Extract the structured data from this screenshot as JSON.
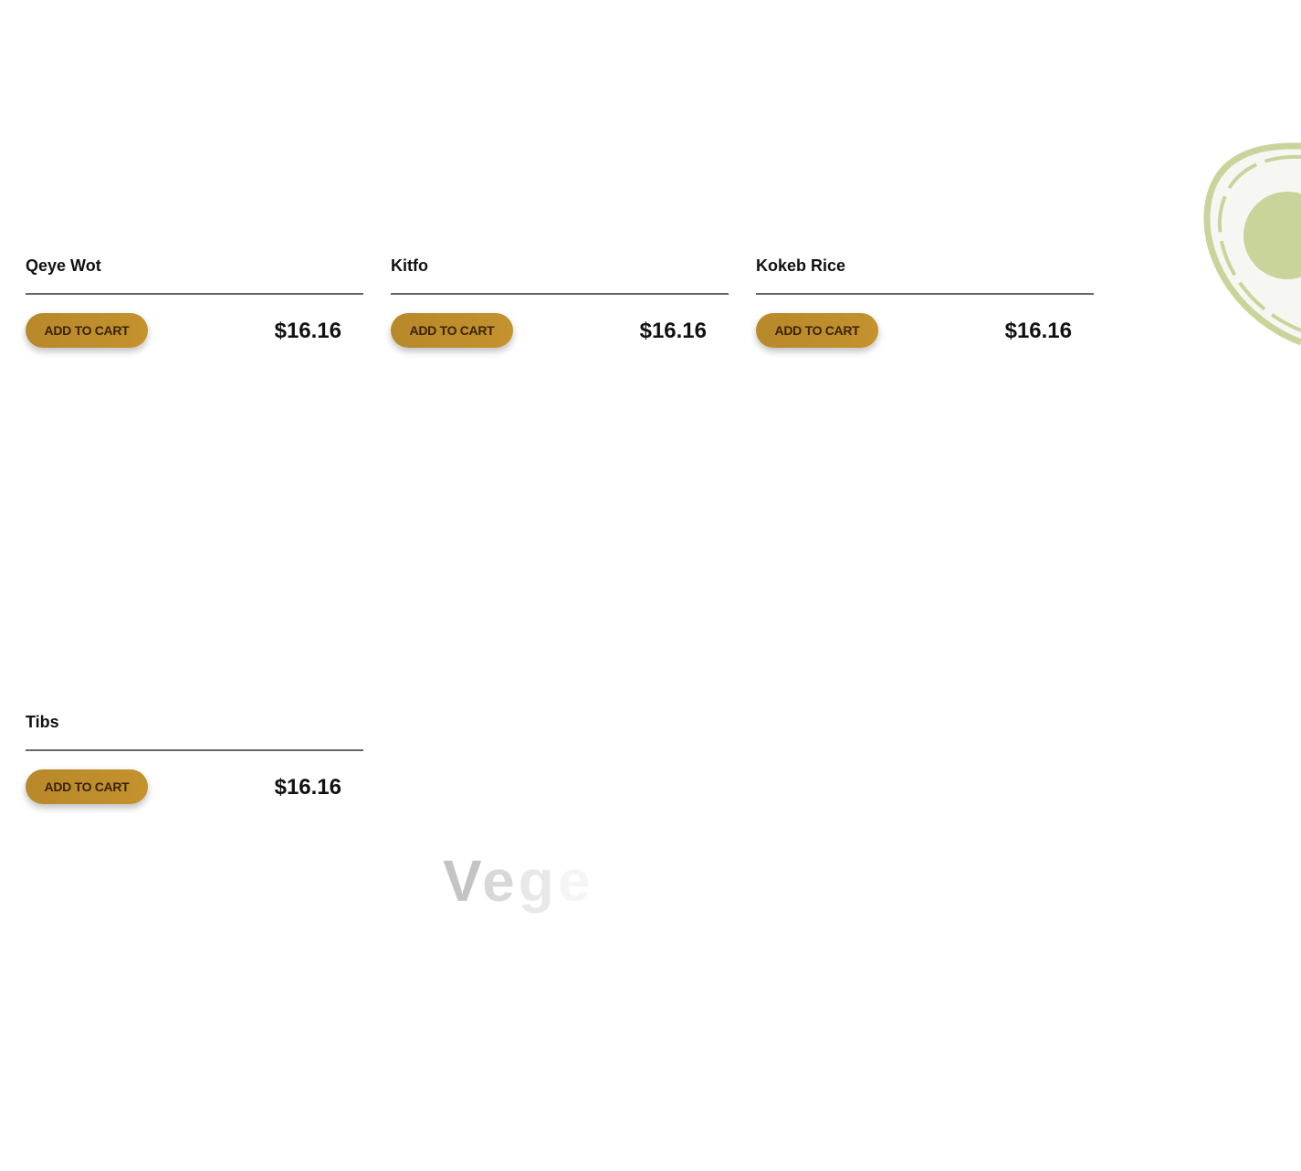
{
  "products": [
    {
      "name": "Qeye Wot",
      "button": "ADD TO CART",
      "price": "$16.16"
    },
    {
      "name": "Kitfo",
      "button": "ADD TO CART",
      "price": "$16.16"
    },
    {
      "name": "Kokeb Rice",
      "button": "ADD TO CART",
      "price": "$16.16"
    },
    {
      "name": "Tibs",
      "button": "ADD TO CART",
      "price": "$16.16"
    }
  ],
  "section_heading": {
    "letters": [
      "V",
      "e",
      "g",
      "e"
    ],
    "opacities": [
      0.9,
      0.6,
      0.35,
      0.15
    ]
  },
  "decoration": {
    "icon": "avocado-icon",
    "color": "#c9d49a"
  },
  "colors": {
    "button": "#bf8e2c",
    "button_text": "#3a2308"
  }
}
